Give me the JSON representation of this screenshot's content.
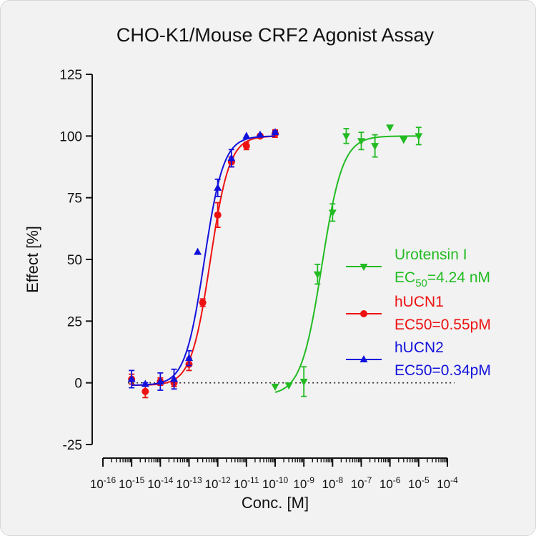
{
  "chart_data": {
    "type": "scatter",
    "title": "CHO-K1/Mouse CRF2 Agonist Assay",
    "xlabel": "Conc. [M]",
    "ylabel": "Effect  [%]",
    "x_scale": "log10",
    "xlim": [
      1e-16,
      0.0001
    ],
    "ylim": [
      -25,
      125
    ],
    "y_ticks": [
      "-25",
      "0",
      "25",
      "50",
      "75",
      "100",
      "125"
    ],
    "x_tick_labels": [
      {
        "base": "10",
        "exp": "-16"
      },
      {
        "base": "10",
        "exp": "-15"
      },
      {
        "base": "10",
        "exp": "-14"
      },
      {
        "base": "10",
        "exp": "-13"
      },
      {
        "base": "10",
        "exp": "-12"
      },
      {
        "base": "10",
        "exp": "-11"
      },
      {
        "base": "10",
        "exp": "-10"
      },
      {
        "base": "10",
        "exp": "-9"
      },
      {
        "base": "10",
        "exp": "-8"
      },
      {
        "base": "10",
        "exp": "-7"
      },
      {
        "base": "10",
        "exp": "-6"
      },
      {
        "base": "10",
        "exp": "-5"
      },
      {
        "base": "10",
        "exp": "-4"
      }
    ],
    "reference_line": {
      "y": 0,
      "style": "dotted"
    },
    "series": [
      {
        "name": "Urotensin I",
        "legend_ec": {
          "prefix": "EC",
          "sub": "50",
          "suffix": "=4.24 nM"
        },
        "color": "#22bb22",
        "marker": "triangle-down",
        "fit": {
          "bottom": -5,
          "top": 100,
          "ec50": 4.24e-09,
          "hill": 1.2
        },
        "points": [
          {
            "x": 1e-10,
            "y": -1.5,
            "err": 0
          },
          {
            "x": 3e-10,
            "y": -1.0,
            "err": 0
          },
          {
            "x": 1e-09,
            "y": 0.5,
            "err": 6
          },
          {
            "x": 3e-09,
            "y": 44,
            "err": 4
          },
          {
            "x": 1e-08,
            "y": 69,
            "err": 3.5
          },
          {
            "x": 3e-08,
            "y": 100,
            "err": 3
          },
          {
            "x": 1e-07,
            "y": 98,
            "err": 3.5
          },
          {
            "x": 3e-07,
            "y": 96,
            "err": 4.5
          },
          {
            "x": 1e-06,
            "y": 103.5,
            "err": 0
          },
          {
            "x": 3e-06,
            "y": 98.5,
            "err": 0
          },
          {
            "x": 1e-05,
            "y": 100,
            "err": 3.5
          }
        ]
      },
      {
        "name": "hUCN1",
        "legend_ec": {
          "prefix": "EC50=0.55pM",
          "sub": "",
          "suffix": ""
        },
        "color": "#ee1111",
        "marker": "circle",
        "fit": {
          "bottom": -1,
          "top": 100,
          "ec50": 5.5e-13,
          "hill": 1.3
        },
        "points": [
          {
            "x": 1e-15,
            "y": 1.5,
            "err": 2
          },
          {
            "x": 3e-15,
            "y": -3.5,
            "err": 2.5
          },
          {
            "x": 1e-14,
            "y": 0.5,
            "err": 1.5
          },
          {
            "x": 3e-14,
            "y": 0,
            "err": 1.5
          },
          {
            "x": 1e-13,
            "y": 7.5,
            "err": 2.5
          },
          {
            "x": 3e-13,
            "y": 32.5,
            "err": 1.5
          },
          {
            "x": 1e-12,
            "y": 68,
            "err": 5
          },
          {
            "x": 3e-12,
            "y": 89.5,
            "err": 2
          },
          {
            "x": 1e-11,
            "y": 96,
            "err": 1.5
          },
          {
            "x": 3e-11,
            "y": 100,
            "err": 0.5
          },
          {
            "x": 1e-10,
            "y": 101,
            "err": 1.5
          }
        ]
      },
      {
        "name": "hUCN2",
        "legend_ec": {
          "prefix": "EC50=0.34pM",
          "sub": "",
          "suffix": ""
        },
        "color": "#1111dd",
        "marker": "triangle-up",
        "fit": {
          "bottom": -1,
          "top": 100,
          "ec50": 3.4e-13,
          "hill": 1.3
        },
        "points": [
          {
            "x": 1e-15,
            "y": 1.5,
            "err": 3.5
          },
          {
            "x": 3e-15,
            "y": -0.5,
            "err": 0.5
          },
          {
            "x": 1e-14,
            "y": 0.5,
            "err": 3.5
          },
          {
            "x": 3e-14,
            "y": 1.5,
            "err": 4
          },
          {
            "x": 1e-13,
            "y": 10,
            "err": 3
          },
          {
            "x": 2e-13,
            "y": 53,
            "err": 0
          },
          {
            "x": 1e-12,
            "y": 79,
            "err": 3.5
          },
          {
            "x": 3e-12,
            "y": 91,
            "err": 3.5
          },
          {
            "x": 1e-11,
            "y": 100,
            "err": 0
          },
          {
            "x": 3e-11,
            "y": 100.5,
            "err": 0
          },
          {
            "x": 1e-10,
            "y": 101.5,
            "err": 0.5
          }
        ]
      }
    ],
    "legend": {
      "placement": "right"
    }
  }
}
